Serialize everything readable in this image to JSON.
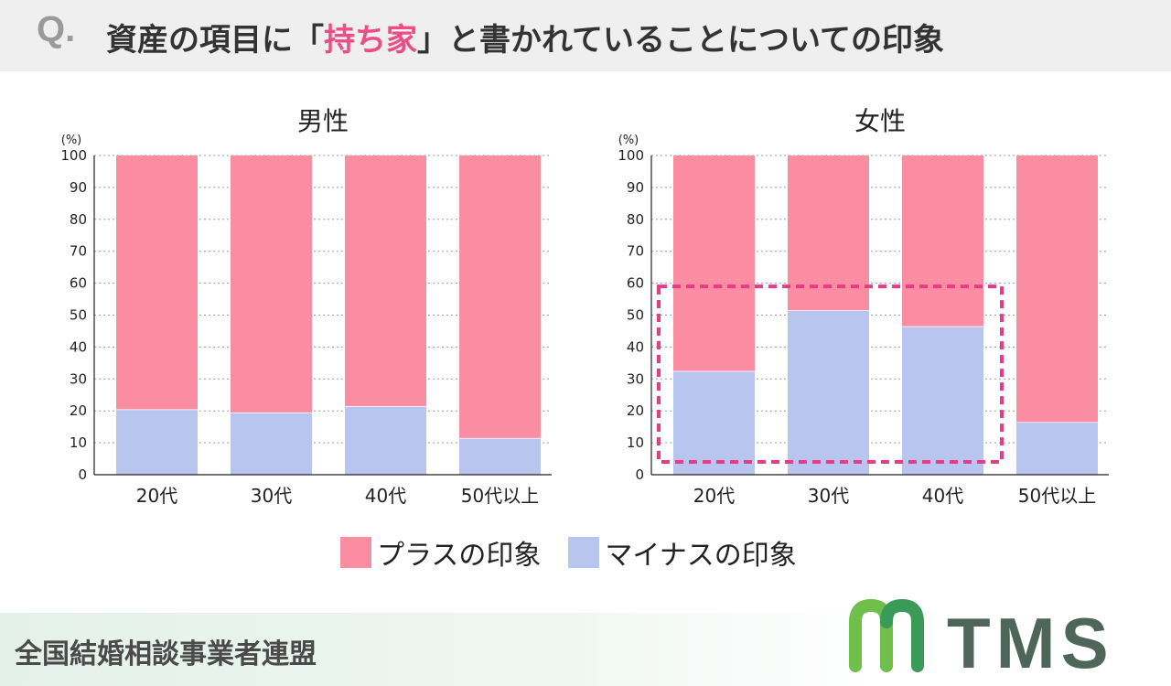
{
  "header": {
    "q_mark": "Q.",
    "question_pre": "資産の項目に「",
    "question_accent": "持ち家",
    "question_post": "」と書かれていることについての印象"
  },
  "colors": {
    "plus": "#fb8da3",
    "minus": "#b7c5ef",
    "accent": "#ec4d84",
    "highlight": "#e83b86"
  },
  "legend": {
    "plus": "プラスの印象",
    "minus": "マイナスの印象"
  },
  "footer": {
    "org": "全国結婚相談事業者連盟",
    "logo_text": "TMS"
  },
  "chart_data": [
    {
      "type": "bar",
      "stacked": true,
      "title": "男性",
      "ylabel": "(%)",
      "ylim": [
        0,
        100
      ],
      "yticks": [
        0,
        10,
        20,
        30,
        40,
        50,
        60,
        70,
        80,
        90,
        100
      ],
      "categories": [
        "20代",
        "30代",
        "40代",
        "50代以上"
      ],
      "series": [
        {
          "name": "マイナスの印象",
          "values": [
            20.5,
            19.5,
            21.5,
            11.5
          ]
        },
        {
          "name": "プラスの印象",
          "values": [
            79.5,
            80.5,
            78.5,
            88.5
          ]
        }
      ],
      "grid": true
    },
    {
      "type": "bar",
      "stacked": true,
      "title": "女性",
      "ylabel": "(%)",
      "ylim": [
        0,
        100
      ],
      "yticks": [
        0,
        10,
        20,
        30,
        40,
        50,
        60,
        70,
        80,
        90,
        100
      ],
      "categories": [
        "20代",
        "30代",
        "40代",
        "50代以上"
      ],
      "series": [
        {
          "name": "マイナスの印象",
          "values": [
            32.5,
            51.5,
            46.5,
            16.5
          ]
        },
        {
          "name": "プラスの印象",
          "values": [
            67.5,
            48.5,
            53.5,
            83.5
          ]
        }
      ],
      "grid": true,
      "highlight_categories": [
        "20代",
        "30代",
        "40代"
      ]
    }
  ]
}
